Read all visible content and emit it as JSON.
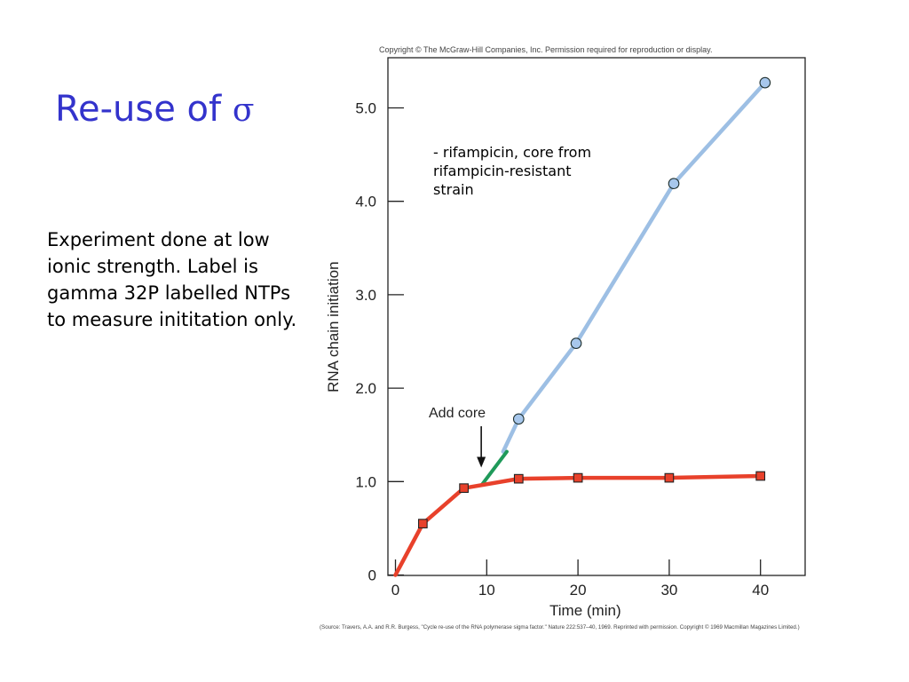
{
  "slide": {
    "title_prefix": "Re-use of ",
    "title_symbol": "σ",
    "body_text": "Experiment done at low ionic strength. Label is gamma 32P labelled NTPs to measure inititation only."
  },
  "figure": {
    "copyright": "Copyright © The McGraw-Hill Companies, Inc. Permission required for reproduction or display.",
    "source": "(Source: Travers, A.A. and R.R. Burgess, \"Cycle re-use of the RNA polymerase sigma factor.\" Nature 222:537–40, 1969. Reprinted with permission. Copyright © 1969 Macmillan Magazines Limited.)"
  },
  "chart_data": {
    "type": "line",
    "title": "",
    "xlabel": "Time (min)",
    "ylabel": "RNA chain initiation",
    "xlim": [
      0,
      45
    ],
    "ylim": [
      0,
      5.5
    ],
    "xticks": [
      0,
      10,
      20,
      30,
      40
    ],
    "xtick_labels": [
      "0",
      "10",
      "20",
      "30",
      "40"
    ],
    "yticks": [
      0,
      1.0,
      2.0,
      3.0,
      4.0,
      5.0
    ],
    "ytick_labels": [
      "0",
      "1.0",
      "2.0",
      "3.0",
      "4.0",
      "5.0"
    ],
    "grid": false,
    "series": [
      {
        "name": "",
        "color": "#e8412b",
        "marker": "square",
        "line": [
          [
            0,
            0
          ],
          [
            3,
            0.55
          ],
          [
            7.5,
            0.93
          ],
          [
            13.5,
            1.03
          ],
          [
            20,
            1.04
          ],
          [
            30,
            1.04
          ],
          [
            40,
            1.06
          ]
        ],
        "points": [
          [
            3,
            0.55
          ],
          [
            7.5,
            0.93
          ],
          [
            13.5,
            1.03
          ],
          [
            20,
            1.04
          ],
          [
            30,
            1.04
          ],
          [
            40,
            1.06
          ]
        ]
      },
      {
        "name": "",
        "color": "#9dbfe4",
        "marker": "circle",
        "line": [
          [
            11.8,
            1.32
          ],
          [
            13.5,
            1.67
          ],
          [
            19.8,
            2.48
          ],
          [
            30.5,
            4.19
          ],
          [
            40.5,
            5.27
          ]
        ],
        "points": [
          [
            13.5,
            1.67
          ],
          [
            19.8,
            2.48
          ],
          [
            30.5,
            4.19
          ],
          [
            40.5,
            5.27
          ]
        ]
      },
      {
        "name": "",
        "color": "#1f9a5a",
        "marker": "none",
        "line": [
          [
            9.5,
            0.97
          ],
          [
            12.2,
            1.32
          ]
        ],
        "points": []
      }
    ],
    "annotations": [
      {
        "text": "Add core",
        "arrow_to": [
          9.4,
          1.15
        ]
      },
      {
        "text_lines": [
          "- rifampicin, core from",
          "rifampicin-resistant",
          "strain"
        ]
      }
    ]
  }
}
